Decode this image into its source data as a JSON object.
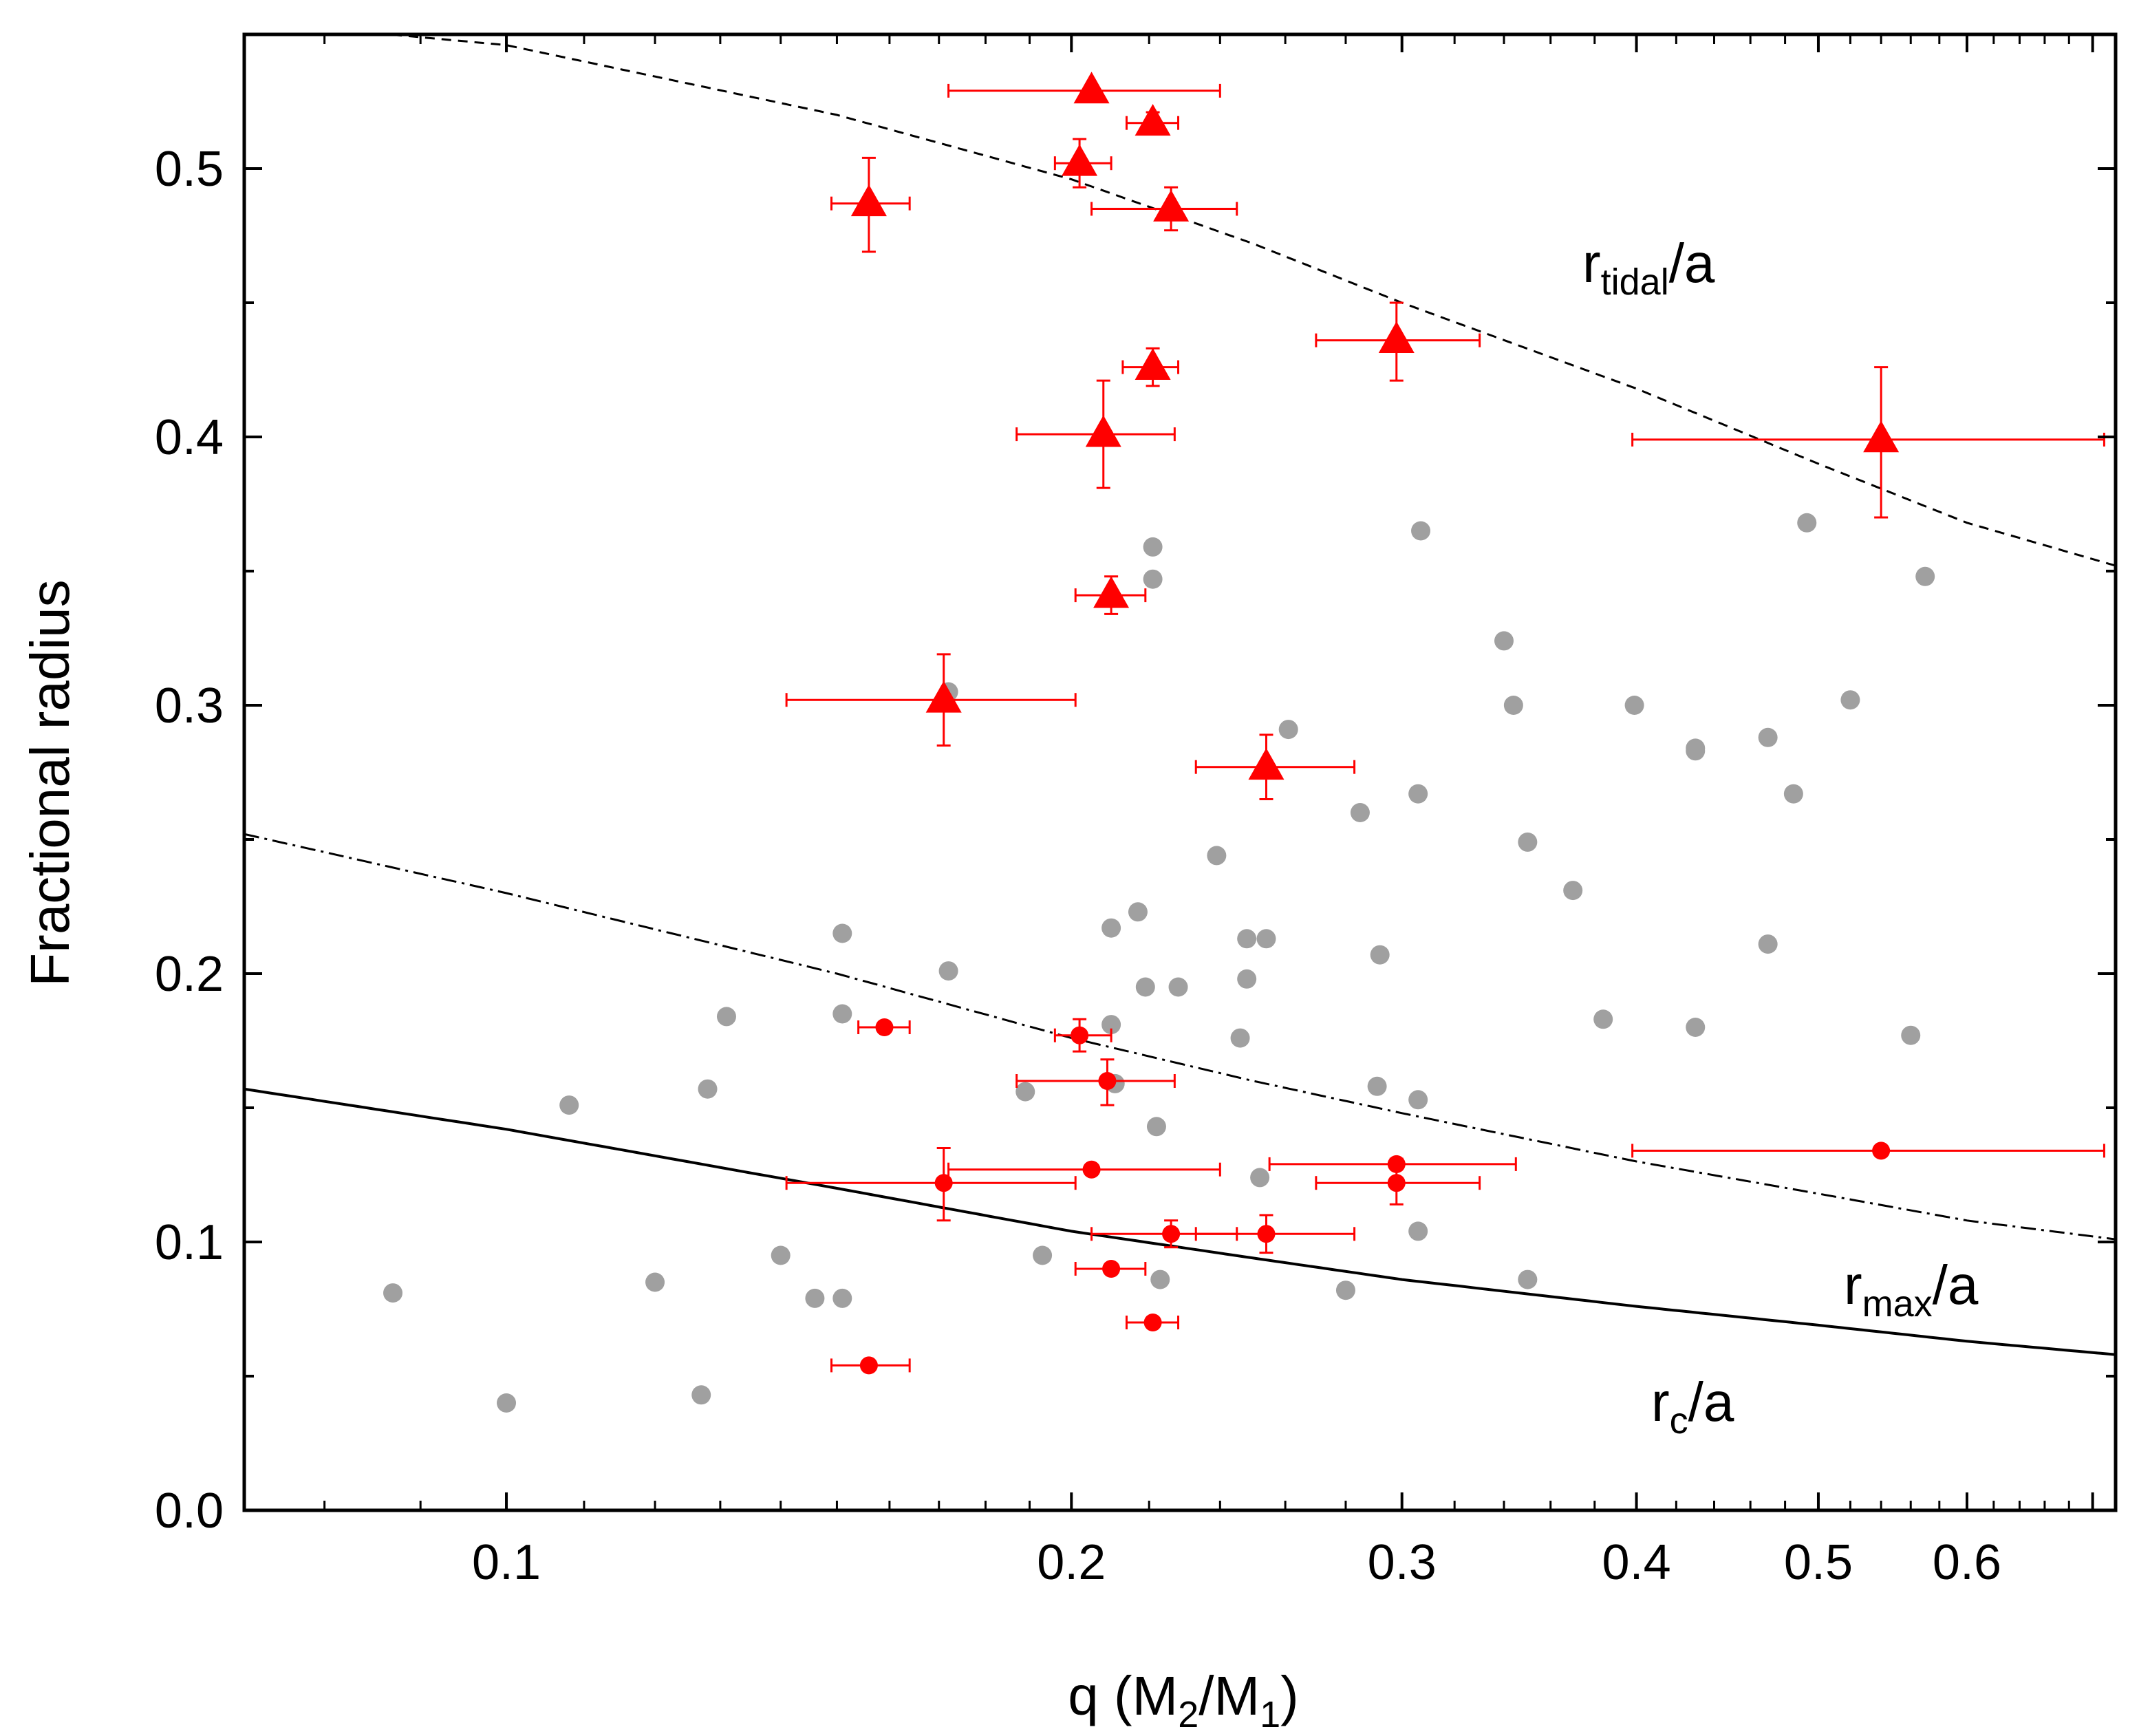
{
  "chart_data": {
    "type": "scatter",
    "xscale": "log",
    "xlim": [
      0.0725,
      0.72
    ],
    "ylim": [
      0.0,
      0.55
    ],
    "xlabel": {
      "main": "q (M",
      "sub1": "2",
      "mid": "/M",
      "sub2": "1",
      "end": ")"
    },
    "ylabel": "Fractional radius",
    "x_ticks": [
      {
        "value": 0.1,
        "label": "0.1"
      },
      {
        "value": 0.2,
        "label": "0.2"
      },
      {
        "value": 0.3,
        "label": "0.3"
      },
      {
        "value": 0.4,
        "label": "0.4"
      },
      {
        "value": 0.5,
        "label": "0.5"
      },
      {
        "value": 0.6,
        "label": "0.6"
      }
    ],
    "y_ticks": [
      {
        "value": 0.0,
        "label": "0.0"
      },
      {
        "value": 0.1,
        "label": "0.1"
      },
      {
        "value": 0.2,
        "label": "0.2"
      },
      {
        "value": 0.3,
        "label": "0.3"
      },
      {
        "value": 0.4,
        "label": "0.4"
      },
      {
        "value": 0.5,
        "label": "0.5"
      }
    ],
    "curves": [
      {
        "name": "r_tidal/a",
        "style": "dashed",
        "label_main": "r",
        "label_sub": "tidal",
        "label_end": "/a",
        "points": [
          [
            0.0725,
            0.555
          ],
          [
            0.1,
            0.546
          ],
          [
            0.15,
            0.52
          ],
          [
            0.2,
            0.496
          ],
          [
            0.25,
            0.472
          ],
          [
            0.3,
            0.45
          ],
          [
            0.4,
            0.418
          ],
          [
            0.5,
            0.39
          ],
          [
            0.6,
            0.368
          ],
          [
            0.72,
            0.352
          ]
        ]
      },
      {
        "name": "r_max/a",
        "style": "dashdot",
        "label_main": "r",
        "label_sub": "max",
        "label_end": "/a",
        "points": [
          [
            0.0725,
            0.252
          ],
          [
            0.1,
            0.23
          ],
          [
            0.15,
            0.2
          ],
          [
            0.2,
            0.176
          ],
          [
            0.25,
            0.16
          ],
          [
            0.3,
            0.148
          ],
          [
            0.4,
            0.13
          ],
          [
            0.5,
            0.118
          ],
          [
            0.6,
            0.108
          ],
          [
            0.72,
            0.101
          ]
        ]
      },
      {
        "name": "r_c/a",
        "style": "solid",
        "label_main": "r",
        "label_sub": "c",
        "label_end": "/a",
        "points": [
          [
            0.0725,
            0.157
          ],
          [
            0.1,
            0.142
          ],
          [
            0.15,
            0.12
          ],
          [
            0.2,
            0.104
          ],
          [
            0.25,
            0.094
          ],
          [
            0.3,
            0.086
          ],
          [
            0.4,
            0.076
          ],
          [
            0.5,
            0.069
          ],
          [
            0.6,
            0.063
          ],
          [
            0.72,
            0.058
          ]
        ]
      }
    ],
    "series": [
      {
        "name": "comparison sample",
        "marker": "circle",
        "color": "#a0a0a0",
        "points": [
          [
            0.087,
            0.081
          ],
          [
            0.1,
            0.04
          ],
          [
            0.108,
            0.151
          ],
          [
            0.12,
            0.085
          ],
          [
            0.128,
            0.157
          ],
          [
            0.131,
            0.184
          ],
          [
            0.127,
            0.043
          ],
          [
            0.14,
            0.095
          ],
          [
            0.146,
            0.079
          ],
          [
            0.151,
            0.079
          ],
          [
            0.151,
            0.185
          ],
          [
            0.151,
            0.215
          ],
          [
            0.172,
            0.201
          ],
          [
            0.172,
            0.305
          ],
          [
            0.189,
            0.156
          ],
          [
            0.193,
            0.095
          ],
          [
            0.21,
            0.181
          ],
          [
            0.21,
            0.217
          ],
          [
            0.211,
            0.159
          ],
          [
            0.222,
            0.143
          ],
          [
            0.223,
            0.086
          ],
          [
            0.217,
            0.223
          ],
          [
            0.219,
            0.195
          ],
          [
            0.228,
            0.195
          ],
          [
            0.221,
            0.347
          ],
          [
            0.221,
            0.359
          ],
          [
            0.239,
            0.244
          ],
          [
            0.246,
            0.176
          ],
          [
            0.248,
            0.198
          ],
          [
            0.248,
            0.213
          ],
          [
            0.252,
            0.124
          ],
          [
            0.254,
            0.213
          ],
          [
            0.261,
            0.291
          ],
          [
            0.28,
            0.082
          ],
          [
            0.285,
            0.26
          ],
          [
            0.291,
            0.158
          ],
          [
            0.292,
            0.207
          ],
          [
            0.306,
            0.104
          ],
          [
            0.306,
            0.153
          ],
          [
            0.306,
            0.267
          ],
          [
            0.307,
            0.365
          ],
          [
            0.34,
            0.324
          ],
          [
            0.344,
            0.3
          ],
          [
            0.35,
            0.086
          ],
          [
            0.35,
            0.249
          ],
          [
            0.37,
            0.231
          ],
          [
            0.384,
            0.183
          ],
          [
            0.399,
            0.3
          ],
          [
            0.43,
            0.18
          ],
          [
            0.43,
            0.283
          ],
          [
            0.43,
            0.284
          ],
          [
            0.47,
            0.211
          ],
          [
            0.47,
            0.288
          ],
          [
            0.485,
            0.267
          ],
          [
            0.493,
            0.368
          ],
          [
            0.52,
            0.302
          ],
          [
            0.56,
            0.177
          ],
          [
            0.57,
            0.348
          ]
        ]
      },
      {
        "name": "triangles",
        "marker": "triangle",
        "color": "#ff0000",
        "points": [
          {
            "x": 0.205,
            "y": 0.529,
            "xlo": 0.172,
            "xhi": 0.24,
            "ylo": 0.529,
            "yhi": 0.529
          },
          {
            "x": 0.221,
            "y": 0.517,
            "xlo": 0.214,
            "xhi": 0.228,
            "ylo": 0.513,
            "yhi": 0.521
          },
          {
            "x": 0.202,
            "y": 0.502,
            "xlo": 0.196,
            "xhi": 0.21,
            "ylo": 0.493,
            "yhi": 0.511
          },
          {
            "x": 0.156,
            "y": 0.487,
            "xlo": 0.149,
            "xhi": 0.164,
            "ylo": 0.469,
            "yhi": 0.504
          },
          {
            "x": 0.226,
            "y": 0.485,
            "xlo": 0.205,
            "xhi": 0.245,
            "ylo": 0.477,
            "yhi": 0.493
          },
          {
            "x": 0.298,
            "y": 0.436,
            "xlo": 0.27,
            "xhi": 0.33,
            "ylo": 0.421,
            "yhi": 0.45
          },
          {
            "x": 0.221,
            "y": 0.426,
            "xlo": 0.213,
            "xhi": 0.228,
            "ylo": 0.419,
            "yhi": 0.433
          },
          {
            "x": 0.208,
            "y": 0.401,
            "xlo": 0.187,
            "xhi": 0.227,
            "ylo": 0.381,
            "yhi": 0.421
          },
          {
            "x": 0.54,
            "y": 0.399,
            "xlo": 0.398,
            "xhi": 0.71,
            "ylo": 0.37,
            "yhi": 0.426
          },
          {
            "x": 0.21,
            "y": 0.341,
            "xlo": 0.201,
            "xhi": 0.219,
            "ylo": 0.334,
            "yhi": 0.348
          },
          {
            "x": 0.171,
            "y": 0.302,
            "xlo": 0.141,
            "xhi": 0.201,
            "ylo": 0.285,
            "yhi": 0.319
          },
          {
            "x": 0.254,
            "y": 0.277,
            "xlo": 0.233,
            "xhi": 0.283,
            "ylo": 0.265,
            "yhi": 0.289
          }
        ]
      },
      {
        "name": "circles",
        "marker": "circle",
        "color": "#ff0000",
        "points": [
          {
            "x": 0.159,
            "y": 0.18,
            "xlo": 0.154,
            "xhi": 0.164,
            "ylo": 0.18,
            "yhi": 0.18
          },
          {
            "x": 0.202,
            "y": 0.177,
            "xlo": 0.196,
            "xhi": 0.21,
            "ylo": 0.171,
            "yhi": 0.183
          },
          {
            "x": 0.209,
            "y": 0.16,
            "xlo": 0.187,
            "xhi": 0.227,
            "ylo": 0.151,
            "yhi": 0.168
          },
          {
            "x": 0.298,
            "y": 0.129,
            "xlo": 0.255,
            "xhi": 0.345,
            "ylo": 0.129,
            "yhi": 0.129
          },
          {
            "x": 0.205,
            "y": 0.127,
            "xlo": 0.172,
            "xhi": 0.24,
            "ylo": 0.127,
            "yhi": 0.127
          },
          {
            "x": 0.171,
            "y": 0.122,
            "xlo": 0.141,
            "xhi": 0.201,
            "ylo": 0.108,
            "yhi": 0.135
          },
          {
            "x": 0.298,
            "y": 0.122,
            "xlo": 0.27,
            "xhi": 0.33,
            "ylo": 0.114,
            "yhi": 0.131
          },
          {
            "x": 0.54,
            "y": 0.134,
            "xlo": 0.398,
            "xhi": 0.71,
            "ylo": 0.134,
            "yhi": 0.134
          },
          {
            "x": 0.226,
            "y": 0.103,
            "xlo": 0.205,
            "xhi": 0.245,
            "ylo": 0.098,
            "yhi": 0.108
          },
          {
            "x": 0.254,
            "y": 0.103,
            "xlo": 0.233,
            "xhi": 0.283,
            "ylo": 0.096,
            "yhi": 0.11
          },
          {
            "x": 0.21,
            "y": 0.09,
            "xlo": 0.201,
            "xhi": 0.219,
            "ylo": 0.09,
            "yhi": 0.09
          },
          {
            "x": 0.221,
            "y": 0.07,
            "xlo": 0.214,
            "xhi": 0.228,
            "ylo": 0.07,
            "yhi": 0.07
          },
          {
            "x": 0.156,
            "y": 0.054,
            "xlo": 0.149,
            "xhi": 0.164,
            "ylo": 0.054,
            "yhi": 0.054
          }
        ]
      }
    ]
  }
}
